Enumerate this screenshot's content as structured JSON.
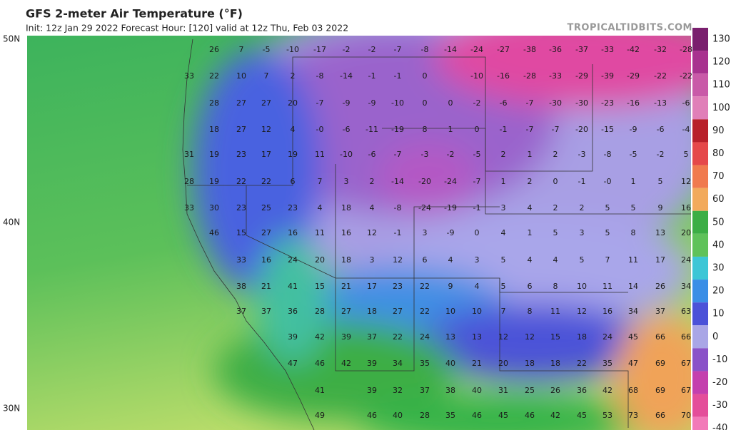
{
  "header": {
    "title": "GFS 2-meter Air Temperature (°F)",
    "subtitle": "Init: 12z Jan 29 2022   Forecast Hour: [120]   valid at 12z Thu, Feb 03 2022",
    "source": "TROPICALTIDBITS.COM"
  },
  "map": {
    "latitude_labels": [
      "50N",
      "40N",
      "30N"
    ],
    "values": [
      [
        26,
        7,
        -5,
        -10,
        -17,
        -2,
        -2,
        -7,
        -8,
        -14,
        -24,
        -27,
        -38,
        -36,
        -37,
        -33,
        -42,
        -32,
        -28
      ],
      [
        33,
        22,
        10,
        7,
        2,
        -8,
        -14,
        -1,
        -1,
        0,
        -10,
        -16,
        -28,
        -33,
        -29,
        -39,
        -29,
        -22,
        -22
      ],
      [
        28,
        27,
        27,
        20,
        -7,
        -9,
        -9,
        -10,
        0,
        0,
        -2,
        -6,
        -7,
        -30,
        -30,
        -23,
        -16,
        -13,
        -6
      ],
      [
        18,
        27,
        12,
        4,
        {
          "value": 0,
          "label": "-0"
        },
        -6,
        -11,
        -19,
        8,
        1,
        0,
        -1,
        -7,
        -7,
        -20,
        -15,
        -9,
        -6,
        -4
      ],
      [
        31,
        19,
        23,
        17,
        19,
        11,
        -10,
        -6,
        -7,
        -3,
        -2,
        -5,
        2,
        1,
        2,
        -3,
        -8,
        -5,
        -2,
        5
      ],
      [
        28,
        19,
        22,
        22,
        6,
        7,
        3,
        2,
        -14,
        -20,
        -24,
        -7,
        1,
        2,
        0,
        -1,
        {
          "value": 0,
          "label": "-0"
        },
        1,
        5,
        12
      ],
      [
        33,
        30,
        23,
        25,
        23,
        4,
        18,
        4,
        -8,
        -24,
        -19,
        -1,
        3,
        4,
        2,
        2,
        5,
        5,
        9,
        16
      ],
      [
        46,
        15,
        27,
        16,
        11,
        16,
        12,
        -1,
        3,
        -9,
        0,
        4,
        1,
        5,
        3,
        5,
        8,
        13,
        20
      ],
      [
        33,
        16,
        24,
        20,
        18,
        3,
        12,
        6,
        4,
        3,
        5,
        4,
        4,
        5,
        7,
        11,
        17,
        24
      ],
      [
        38,
        21,
        41,
        15,
        21,
        17,
        23,
        22,
        9,
        4,
        5,
        6,
        8,
        10,
        11,
        14,
        26,
        34
      ],
      [
        37,
        37,
        36,
        28,
        27,
        18,
        27,
        22,
        10,
        10,
        7,
        8,
        11,
        12,
        16,
        34,
        37,
        63
      ],
      [
        39,
        42,
        39,
        37,
        22,
        24,
        13,
        13,
        12,
        12,
        15,
        18,
        24,
        45,
        66,
        66
      ],
      [
        47,
        46,
        42,
        39,
        34,
        35,
        40,
        21,
        20,
        18,
        18,
        22,
        35,
        47,
        69,
        67
      ],
      [
        41,
        39,
        32,
        37,
        38,
        40,
        31,
        25,
        26,
        36,
        42,
        68,
        69,
        67
      ],
      [
        49,
        46,
        40,
        28,
        35,
        46,
        45,
        46,
        42,
        45,
        53,
        73,
        66,
        70
      ]
    ]
  },
  "colorbar": {
    "ticks": [
      130,
      120,
      110,
      100,
      90,
      80,
      70,
      60,
      50,
      40,
      30,
      20,
      10,
      0,
      -10,
      -20,
      -30,
      -40
    ],
    "colors": [
      "#7a1f6e",
      "#a8328f",
      "#c95aa8",
      "#e07fb8",
      "#b8202a",
      "#e5484a",
      "#f07a4e",
      "#f2aa5c",
      "#3cae45",
      "#5fc25a",
      "#3cc6d6",
      "#3a8ee6",
      "#4b52d8",
      "#a9a6e6",
      "#8a52c8",
      "#c43fae",
      "#e44e9a",
      "#f27ab8"
    ]
  }
}
